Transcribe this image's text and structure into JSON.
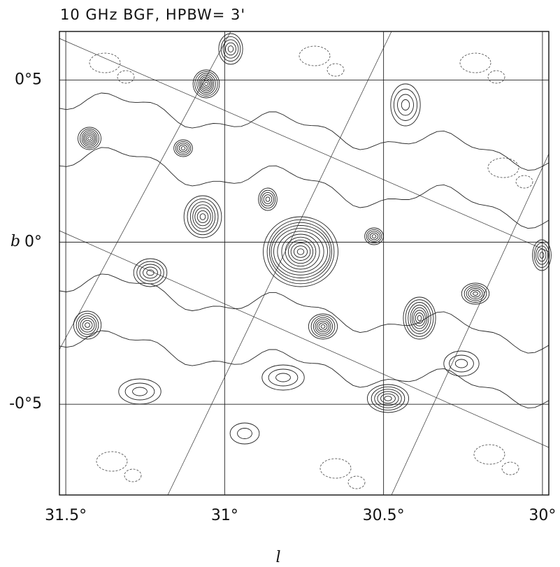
{
  "chart_data": {
    "type": "contour",
    "title": "10 GHz BGF, HPBW= 3'",
    "xlabel": "l",
    "ylabel": "b",
    "xlim": [
      31.52,
      29.98
    ],
    "ylim": [
      -0.78,
      0.65
    ],
    "xticks": [
      {
        "value": 31.5,
        "label": "31.5°"
      },
      {
        "value": 31,
        "label": "31°"
      },
      {
        "value": 30.5,
        "label": "30.5°"
      },
      {
        "value": 30,
        "label": "30°"
      }
    ],
    "yticks": [
      {
        "value": 0.5,
        "label": "0°5"
      },
      {
        "value": 0,
        "label": "0°"
      },
      {
        "value": -0.5,
        "label": "-0°5"
      }
    ],
    "grid": true
  }
}
